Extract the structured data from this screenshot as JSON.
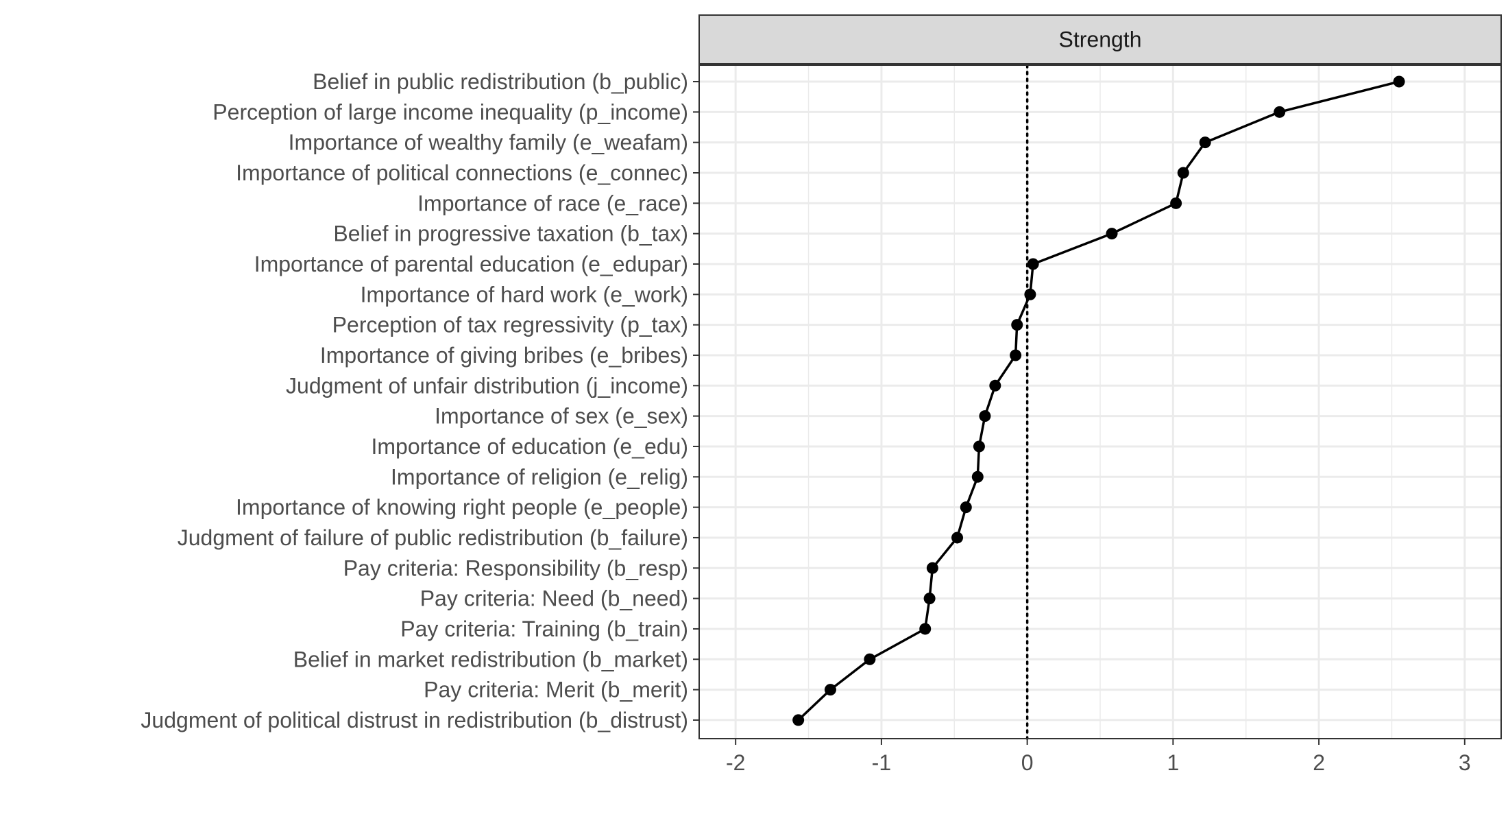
{
  "chart_data": {
    "type": "line",
    "facet_label": "Strength",
    "title": "",
    "xlabel": "",
    "ylabel": "",
    "xlim": [
      -2.25,
      3.25
    ],
    "x_ticks": [
      -2,
      -1,
      0,
      1,
      2,
      3
    ],
    "x_tick_labels": [
      "-2",
      "-1",
      "0",
      "1",
      "2",
      "3"
    ],
    "reference_line": {
      "x": 0,
      "style": "dotted"
    },
    "grid": true,
    "colors": {
      "line": "#000000",
      "point": "#000000",
      "grid": "#ebebeb",
      "strip_fill": "#d9d9d9",
      "strip_border": "#333333",
      "panel_border": "#333333",
      "reference": "#000000"
    },
    "categories": [
      "Belief in public redistribution (b_public)",
      "Perception of large income inequality (p_income)",
      "Importance of wealthy family (e_weafam)",
      "Importance of political connections (e_connec)",
      "Importance of race (e_race)",
      "Belief in progressive taxation (b_tax)",
      "Importance of parental education (e_edupar)",
      "Importance of hard work (e_work)",
      "Perception of tax regressivity (p_tax)",
      "Importance of giving bribes (e_bribes)",
      "Judgment of unfair distribution (j_income)",
      "Importance of sex (e_sex)",
      "Importance of education (e_edu)",
      "Importance of religion (e_relig)",
      "Importance of knowing right people (e_people)",
      "Judgment of failure of public redistribution (b_failure)",
      "Pay criteria: Responsibility (b_resp)",
      "Pay criteria: Need (b_need)",
      "Pay criteria: Training (b_train)",
      "Belief in market redistribution (b_market)",
      "Pay criteria: Merit (b_merit)",
      "Judgment of political distrust in redistribution (b_distrust)"
    ],
    "values": [
      2.55,
      1.73,
      1.22,
      1.07,
      1.02,
      0.58,
      0.04,
      0.02,
      -0.07,
      -0.08,
      -0.22,
      -0.29,
      -0.33,
      -0.34,
      -0.42,
      -0.48,
      -0.65,
      -0.67,
      -0.7,
      -1.08,
      -1.35,
      -1.57
    ]
  }
}
